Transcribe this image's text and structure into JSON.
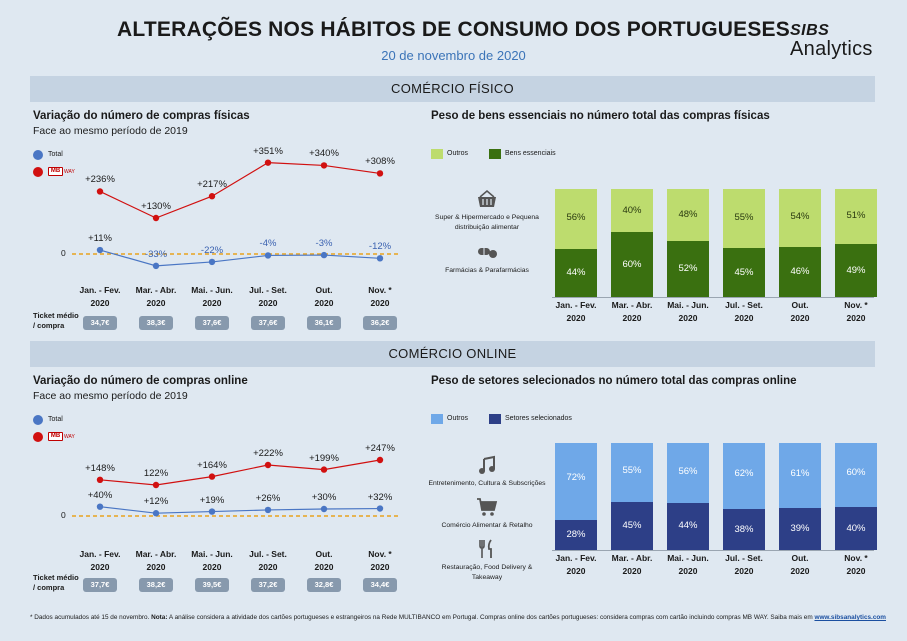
{
  "header": {
    "title": "ALTERAÇÕES NOS HÁBITOS DE CONSUMO DOS PORTUGUESES",
    "date": "20 de novembro de 2020",
    "logo_line1": "SIBS",
    "logo_line2": "Analytics"
  },
  "sections": {
    "fisico": "COMÉRCIO FÍSICO",
    "online": "COMÉRCIO ONLINE"
  },
  "periods": [
    {
      "line1": "Jan. - Fev.",
      "line2": "2020"
    },
    {
      "line1": "Mar. - Abr.",
      "line2": "2020"
    },
    {
      "line1": "Mai. - Jun.",
      "line2": "2020"
    },
    {
      "line1": "Jul. - Set.",
      "line2": "2020"
    },
    {
      "line1": "Out.",
      "line2": "2020"
    },
    {
      "line1": "Nov. *",
      "line2": "2020"
    }
  ],
  "legend_line": {
    "total": "Total",
    "mb_logo": "MB",
    "mb_way": "WAY",
    "zero": "0",
    "ticket_label_1": "Ticket médio",
    "ticket_label_2": "/ compra"
  },
  "chart_data": [
    {
      "type": "line",
      "title": "Variação do número de compras físicas",
      "subtitle": "Face ao mesmo período de 2019",
      "categories": [
        "Jan. - Fev. 2020",
        "Mar. - Abr. 2020",
        "Mai. - Jun. 2020",
        "Jul. - Set. 2020",
        "Out. 2020",
        "Nov. * 2020"
      ],
      "series": [
        {
          "name": "Total",
          "values": [
            11,
            -33,
            -22,
            -4,
            -3,
            -12
          ],
          "labels": [
            "+11%",
            "-33%",
            "-22%",
            "-4%",
            "-3%",
            "-12%"
          ],
          "color": "#4a76c4"
        },
        {
          "name": "MB WAY",
          "values": [
            236,
            130,
            217,
            351,
            340,
            308
          ],
          "labels": [
            "+236%",
            "+130%",
            "+217%",
            "+351%",
            "+340%",
            "+308%"
          ],
          "color": "#d11010"
        }
      ],
      "ticket_medio": [
        "34,7€",
        "38,3€",
        "37,6€",
        "37,6€",
        "36,1€",
        "36,2€"
      ]
    },
    {
      "type": "bar",
      "stacked": true,
      "title": "Peso de bens essenciais no número total das compras físicas",
      "categories": [
        "Jan. - Fev. 2020",
        "Mar. - Abr. 2020",
        "Mai. - Jun. 2020",
        "Jul. - Set. 2020",
        "Out. 2020",
        "Nov. * 2020"
      ],
      "series": [
        {
          "name": "Bens essenciais",
          "values": [
            44,
            60,
            52,
            45,
            46,
            49
          ],
          "color": "#3a7010"
        },
        {
          "name": "Outros",
          "values": [
            56,
            40,
            48,
            55,
            54,
            51
          ],
          "color": "#bddc6e"
        }
      ],
      "ylim": [
        0,
        100
      ],
      "side_categories": [
        "Super & Hipermercado e Pequena distribuição alimentar",
        "Farmácias & Parafarmácias"
      ],
      "icons": [
        "basket-icon",
        "pill-icon"
      ]
    },
    {
      "type": "line",
      "title": "Variação do número de compras online",
      "subtitle": "Face ao mesmo período de 2019",
      "categories": [
        "Jan. - Fev. 2020",
        "Mar. - Abr. 2020",
        "Mai. - Jun. 2020",
        "Jul. - Set. 2020",
        "Out. 2020",
        "Nov. * 2020"
      ],
      "series": [
        {
          "name": "Total",
          "values": [
            40,
            12,
            19,
            26,
            30,
            32
          ],
          "labels": [
            "+40%",
            "+12%",
            "+19%",
            "+26%",
            "+30%",
            "+32%"
          ],
          "color": "#4a76c4"
        },
        {
          "name": "MB WAY",
          "values": [
            148,
            122,
            164,
            222,
            199,
            247
          ],
          "labels": [
            "+148%",
            "122%",
            "+164%",
            "+222%",
            "+199%",
            "+247%"
          ],
          "color": "#d11010"
        }
      ],
      "ticket_medio": [
        "37,7€",
        "38,2€",
        "39,5€",
        "37,2€",
        "32,8€",
        "34,4€"
      ]
    },
    {
      "type": "bar",
      "stacked": true,
      "title": "Peso de setores selecionados no número total das compras online",
      "categories": [
        "Jan. - Fev. 2020",
        "Mar. - Abr. 2020",
        "Mai. - Jun. 2020",
        "Jul. - Set. 2020",
        "Out. 2020",
        "Nov. * 2020"
      ],
      "series": [
        {
          "name": "Setores selecionados",
          "values": [
            28,
            45,
            44,
            38,
            39,
            40
          ],
          "color": "#2d3f87"
        },
        {
          "name": "Outros",
          "values": [
            72,
            55,
            56,
            62,
            61,
            60
          ],
          "color": "#6fa8e8"
        }
      ],
      "ylim": [
        0,
        100
      ],
      "side_categories": [
        "Entretenimento, Cultura & Subscrições",
        "Comércio Alimentar & Retalho",
        "Restauração, Food Delivery & Takeaway"
      ],
      "icons": [
        "music-note-icon",
        "cart-icon",
        "cutlery-icon"
      ]
    }
  ],
  "footer": {
    "text": "* Dados acumulados até 15 de novembro. ",
    "note_label": "Nota:",
    "note_text": " A análise considera a atividade dos cartões portugueses e estrangeiros na Rede MULTIBANCO em Portugal. Compras online dos cartões portugueses: considera compras com cartão incluindo compras MB WAY. Saiba mais em ",
    "link": "www.sibsanalytics.com"
  }
}
